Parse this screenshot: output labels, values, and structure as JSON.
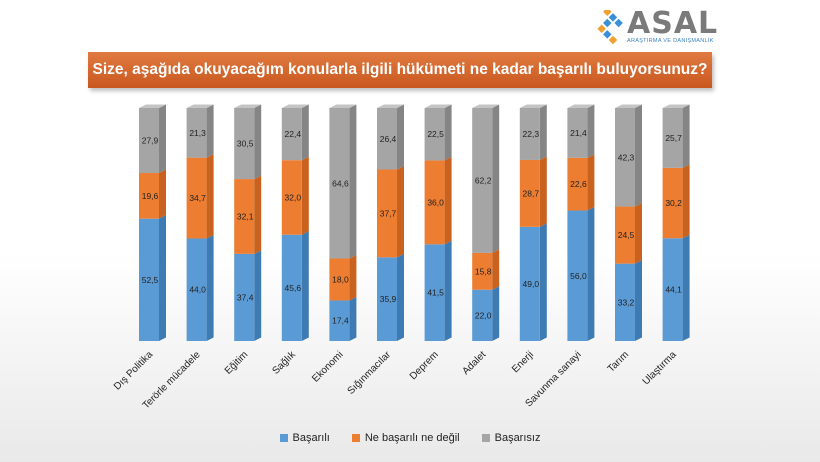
{
  "brand": {
    "name": "ASAL",
    "subtitle": "ARAŞTIRMA VE DANIŞMANLIK"
  },
  "chart_data": {
    "type": "bar",
    "stacked": true,
    "title": "Size, aşağıda okuyacağım konularla ilgili hükümeti ne kadar başarılı buluyorsunuz?",
    "categories": [
      "Dış Politika",
      "Terörle mücadele",
      "Eğitim",
      "Sağlık",
      "Ekonomi",
      "Sığınmacılar",
      "Deprem",
      "Adalet",
      "Enerji",
      "Savunma sanayi",
      "Tarım",
      "Ulaştırma"
    ],
    "series": [
      {
        "name": "Başarılı",
        "color": "#5b9bd5",
        "values": [
          52.5,
          44.0,
          37.4,
          45.6,
          17.4,
          35.9,
          41.5,
          22.0,
          49.0,
          56.0,
          33.2,
          44.1
        ]
      },
      {
        "name": "Ne başarılı ne değil",
        "color": "#ed7d31",
        "values": [
          19.6,
          34.7,
          32.1,
          32.0,
          18.0,
          37.7,
          36.0,
          15.8,
          28.7,
          22.6,
          24.5,
          30.2
        ]
      },
      {
        "name": "Başarısız",
        "color": "#a5a5a5",
        "values": [
          27.9,
          21.3,
          30.5,
          22.4,
          64.6,
          26.4,
          22.5,
          62.2,
          22.3,
          21.4,
          42.3,
          25.7
        ]
      }
    ],
    "labels": [
      [
        "52,5",
        "44,0",
        "37,4",
        "45,6",
        "17,4",
        "35,9",
        "41,5",
        "22,0",
        "49,0",
        "56,0",
        "33,2",
        "44,1"
      ],
      [
        "19,6",
        "34,7",
        "32,1",
        "32,0",
        "18,0",
        "37,7",
        "36,0",
        "15,8",
        "28,7",
        "22,6",
        "24,5",
        "30,2"
      ],
      [
        "27,9",
        "21,3",
        "30,5",
        "22,4",
        "64,6",
        "26,4",
        "22,5",
        "62,2",
        "22,3",
        "21,4",
        "42,3",
        "25,7"
      ]
    ],
    "ylim": [
      0,
      100
    ],
    "legend_position": "bottom"
  }
}
